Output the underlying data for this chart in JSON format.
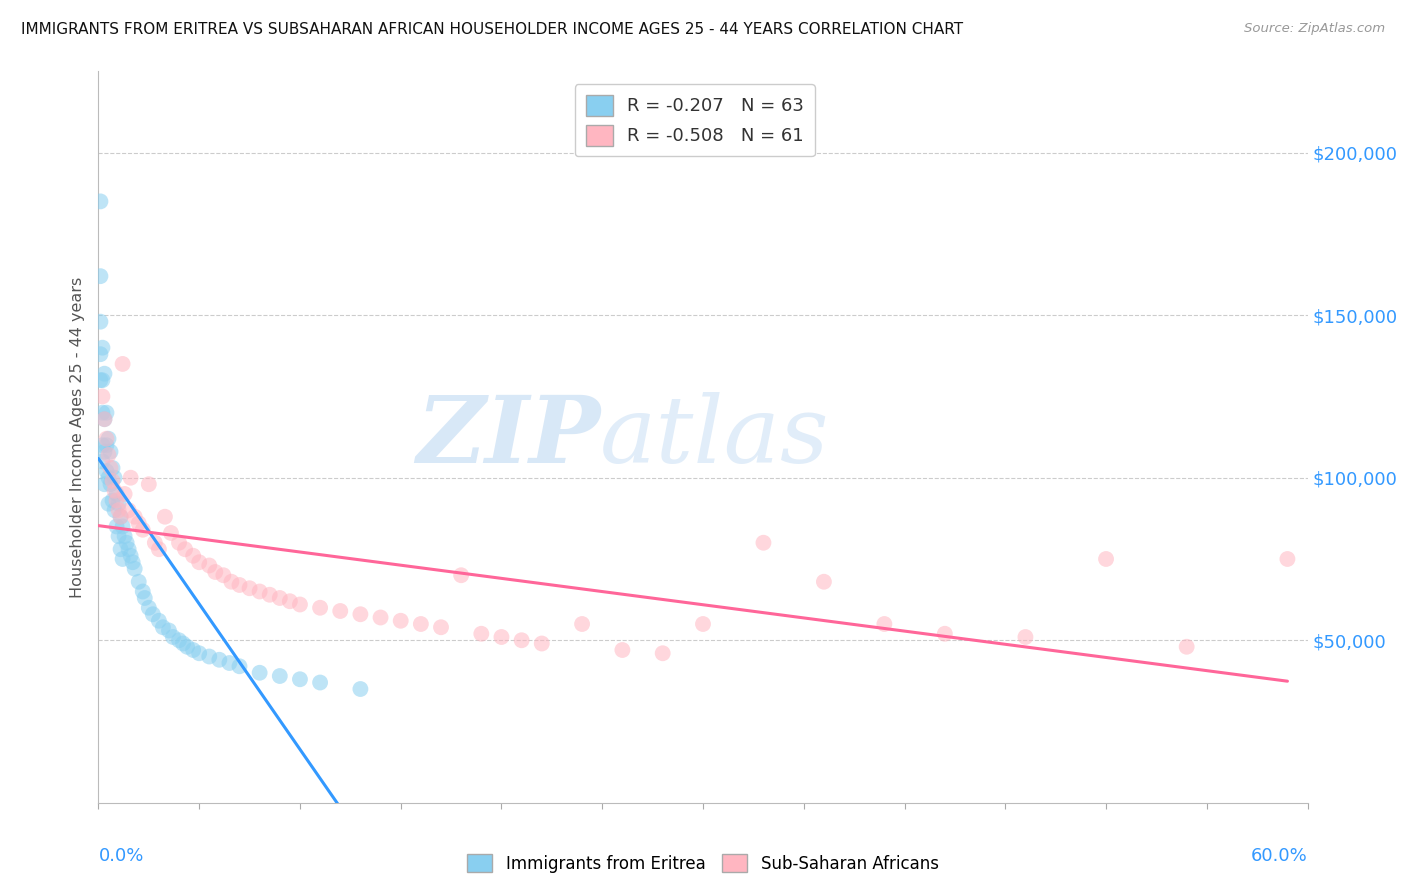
{
  "title": "IMMIGRANTS FROM ERITREA VS SUBSAHARAN AFRICAN HOUSEHOLDER INCOME AGES 25 - 44 YEARS CORRELATION CHART",
  "source": "Source: ZipAtlas.com",
  "ylabel": "Householder Income Ages 25 - 44 years",
  "right_yticks": [
    "$50,000",
    "$100,000",
    "$150,000",
    "$200,000"
  ],
  "right_ytick_values": [
    50000,
    100000,
    150000,
    200000
  ],
  "watermark_zip": "ZIP",
  "watermark_atlas": "atlas",
  "color_eritrea": "#89CFF0",
  "color_subsaharan": "#FFB6C1",
  "trendline_eritrea_color": "#3399FF",
  "trendline_subsaharan_color": "#FF6699",
  "trendline_ext_color": "#AACCEE",
  "background_color": "#FFFFFF",
  "xlim": [
    0.0,
    0.6
  ],
  "ylim": [
    0,
    225000
  ],
  "grid_color": "#CCCCCC",
  "eritrea_x": [
    0.001,
    0.001,
    0.001,
    0.001,
    0.001,
    0.002,
    0.002,
    0.002,
    0.002,
    0.002,
    0.003,
    0.003,
    0.003,
    0.003,
    0.004,
    0.004,
    0.004,
    0.005,
    0.005,
    0.005,
    0.006,
    0.006,
    0.007,
    0.007,
    0.008,
    0.008,
    0.009,
    0.009,
    0.01,
    0.01,
    0.011,
    0.011,
    0.012,
    0.012,
    0.013,
    0.014,
    0.015,
    0.016,
    0.017,
    0.018,
    0.02,
    0.022,
    0.023,
    0.025,
    0.027,
    0.03,
    0.032,
    0.035,
    0.037,
    0.04,
    0.042,
    0.044,
    0.047,
    0.05,
    0.055,
    0.06,
    0.065,
    0.07,
    0.08,
    0.09,
    0.1,
    0.11,
    0.13
  ],
  "eritrea_y": [
    185000,
    162000,
    148000,
    138000,
    130000,
    140000,
    130000,
    120000,
    110000,
    105000,
    132000,
    118000,
    108000,
    98000,
    120000,
    110000,
    102000,
    112000,
    100000,
    92000,
    108000,
    98000,
    103000,
    93000,
    100000,
    90000,
    95000,
    85000,
    92000,
    82000,
    88000,
    78000,
    85000,
    75000,
    82000,
    80000,
    78000,
    76000,
    74000,
    72000,
    68000,
    65000,
    63000,
    60000,
    58000,
    56000,
    54000,
    53000,
    51000,
    50000,
    49000,
    48000,
    47000,
    46000,
    45000,
    44000,
    43000,
    42000,
    40000,
    39000,
    38000,
    37000,
    35000
  ],
  "subsaharan_x": [
    0.002,
    0.003,
    0.004,
    0.005,
    0.006,
    0.007,
    0.008,
    0.009,
    0.01,
    0.011,
    0.012,
    0.013,
    0.015,
    0.016,
    0.018,
    0.02,
    0.022,
    0.025,
    0.028,
    0.03,
    0.033,
    0.036,
    0.04,
    0.043,
    0.047,
    0.05,
    0.055,
    0.058,
    0.062,
    0.066,
    0.07,
    0.075,
    0.08,
    0.085,
    0.09,
    0.095,
    0.1,
    0.11,
    0.12,
    0.13,
    0.14,
    0.15,
    0.16,
    0.17,
    0.18,
    0.19,
    0.2,
    0.21,
    0.22,
    0.24,
    0.26,
    0.28,
    0.3,
    0.33,
    0.36,
    0.39,
    0.42,
    0.46,
    0.5,
    0.54,
    0.59
  ],
  "subsaharan_y": [
    125000,
    118000,
    112000,
    107000,
    103000,
    99000,
    96000,
    93000,
    90000,
    88000,
    135000,
    95000,
    90000,
    100000,
    88000,
    86000,
    84000,
    98000,
    80000,
    78000,
    88000,
    83000,
    80000,
    78000,
    76000,
    74000,
    73000,
    71000,
    70000,
    68000,
    67000,
    66000,
    65000,
    64000,
    63000,
    62000,
    61000,
    60000,
    59000,
    58000,
    57000,
    56000,
    55000,
    54000,
    70000,
    52000,
    51000,
    50000,
    49000,
    55000,
    47000,
    46000,
    55000,
    80000,
    68000,
    55000,
    52000,
    51000,
    75000,
    48000,
    75000
  ]
}
